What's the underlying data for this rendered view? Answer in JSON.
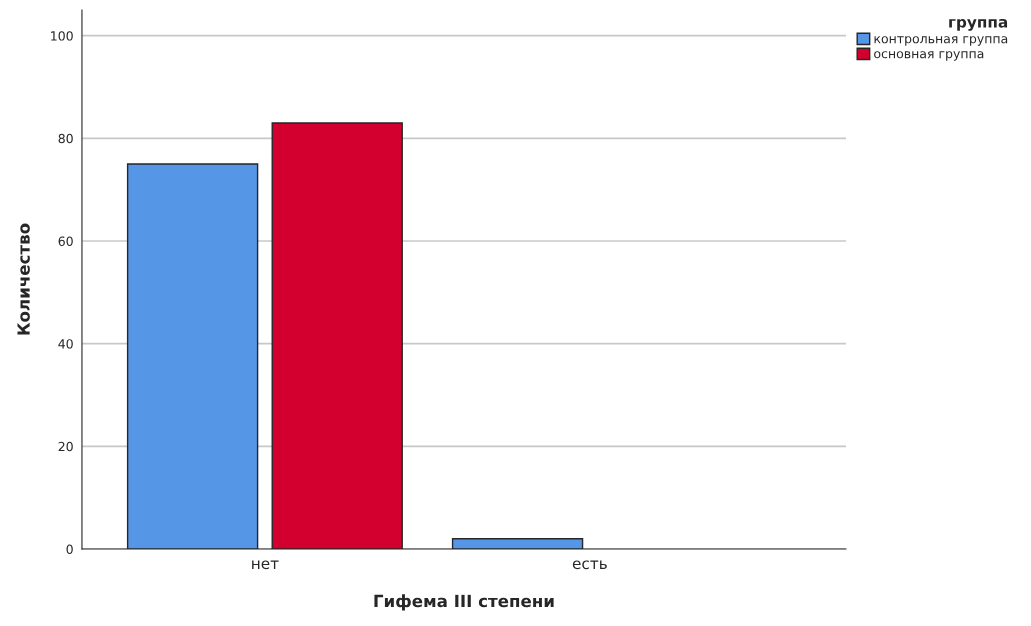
{
  "chart_data": {
    "type": "bar",
    "xlabel": "Гифема III степени",
    "ylabel": "Количество",
    "legend_title": "группа",
    "categories": [
      "нет",
      "есть"
    ],
    "series": [
      {
        "name": "контрольная группа",
        "color": "#5596e6",
        "values": [
          75,
          2
        ]
      },
      {
        "name": "основная группа",
        "color": "#d3002f",
        "values": [
          83,
          null
        ]
      }
    ],
    "ylim": [
      0,
      105
    ],
    "yticks": [
      0,
      20,
      40,
      60,
      80,
      100
    ],
    "grid": "y",
    "legend": "top right"
  }
}
